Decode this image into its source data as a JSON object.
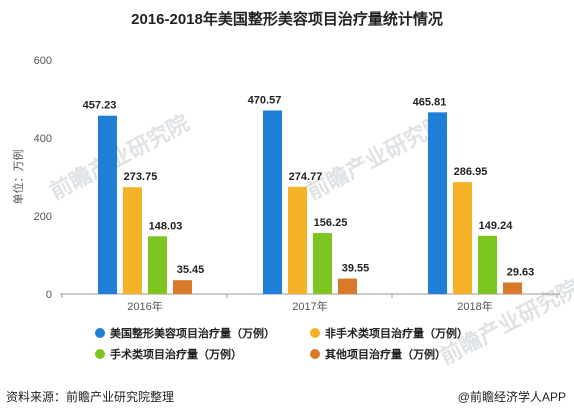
{
  "title": "2016-2018年美国整形美容项目治疗量统计情况",
  "source": "资料来源：前瞻产业研究院整理",
  "credit": "@前瞻经济学人APP",
  "watermark": "前瞻产业研究院",
  "chart_data": {
    "type": "bar",
    "categories": [
      "2016年",
      "2017年",
      "2018年"
    ],
    "ylabel": "单位：万例",
    "ylim": [
      0,
      600
    ],
    "yticks": [
      0,
      200,
      400,
      600
    ],
    "grid": false,
    "legend_position": "bottom",
    "series": [
      {
        "name": "美国整形美容项目治疗量（万例）",
        "color": "#1f7fd6",
        "values": [
          457.23,
          470.57,
          465.81
        ]
      },
      {
        "name": "非手术类项目治疗量（万例）",
        "color": "#f4b229",
        "values": [
          273.75,
          274.77,
          286.95
        ]
      },
      {
        "name": "手术类项目治疗量（万例）",
        "color": "#7dc622",
        "values": [
          148.03,
          156.25,
          149.24
        ]
      },
      {
        "name": "其他项目治疗量（万例）",
        "color": "#d97a2b",
        "values": [
          35.45,
          39.55,
          29.63
        ]
      }
    ]
  }
}
